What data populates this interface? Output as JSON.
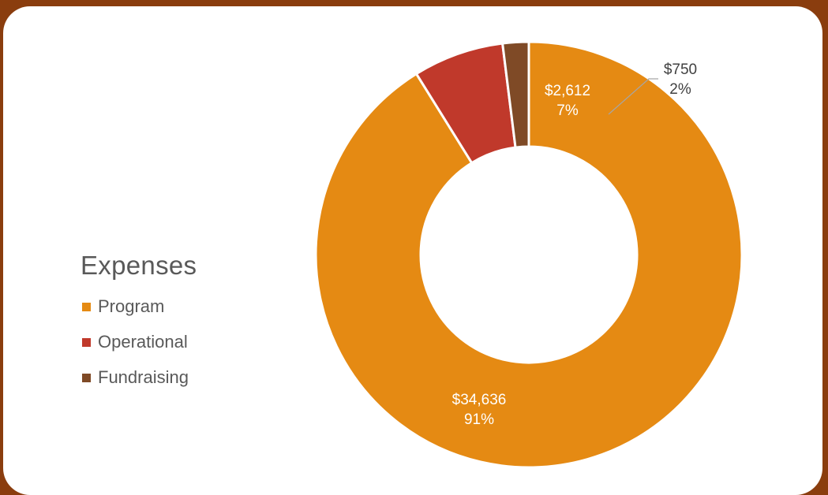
{
  "chart_data": {
    "type": "pie",
    "variant": "donut",
    "title": "Expenses",
    "categories": [
      "Program",
      "Operational",
      "Fundraising"
    ],
    "values": [
      34636,
      2612,
      750
    ],
    "value_labels": [
      "$34,636",
      "$2,612",
      "$750"
    ],
    "percent_labels": [
      "91%",
      "7%",
      "2%"
    ],
    "colors": [
      "#e58a13",
      "#c0392b",
      "#7f4a26"
    ],
    "legend_position": "left"
  }
}
